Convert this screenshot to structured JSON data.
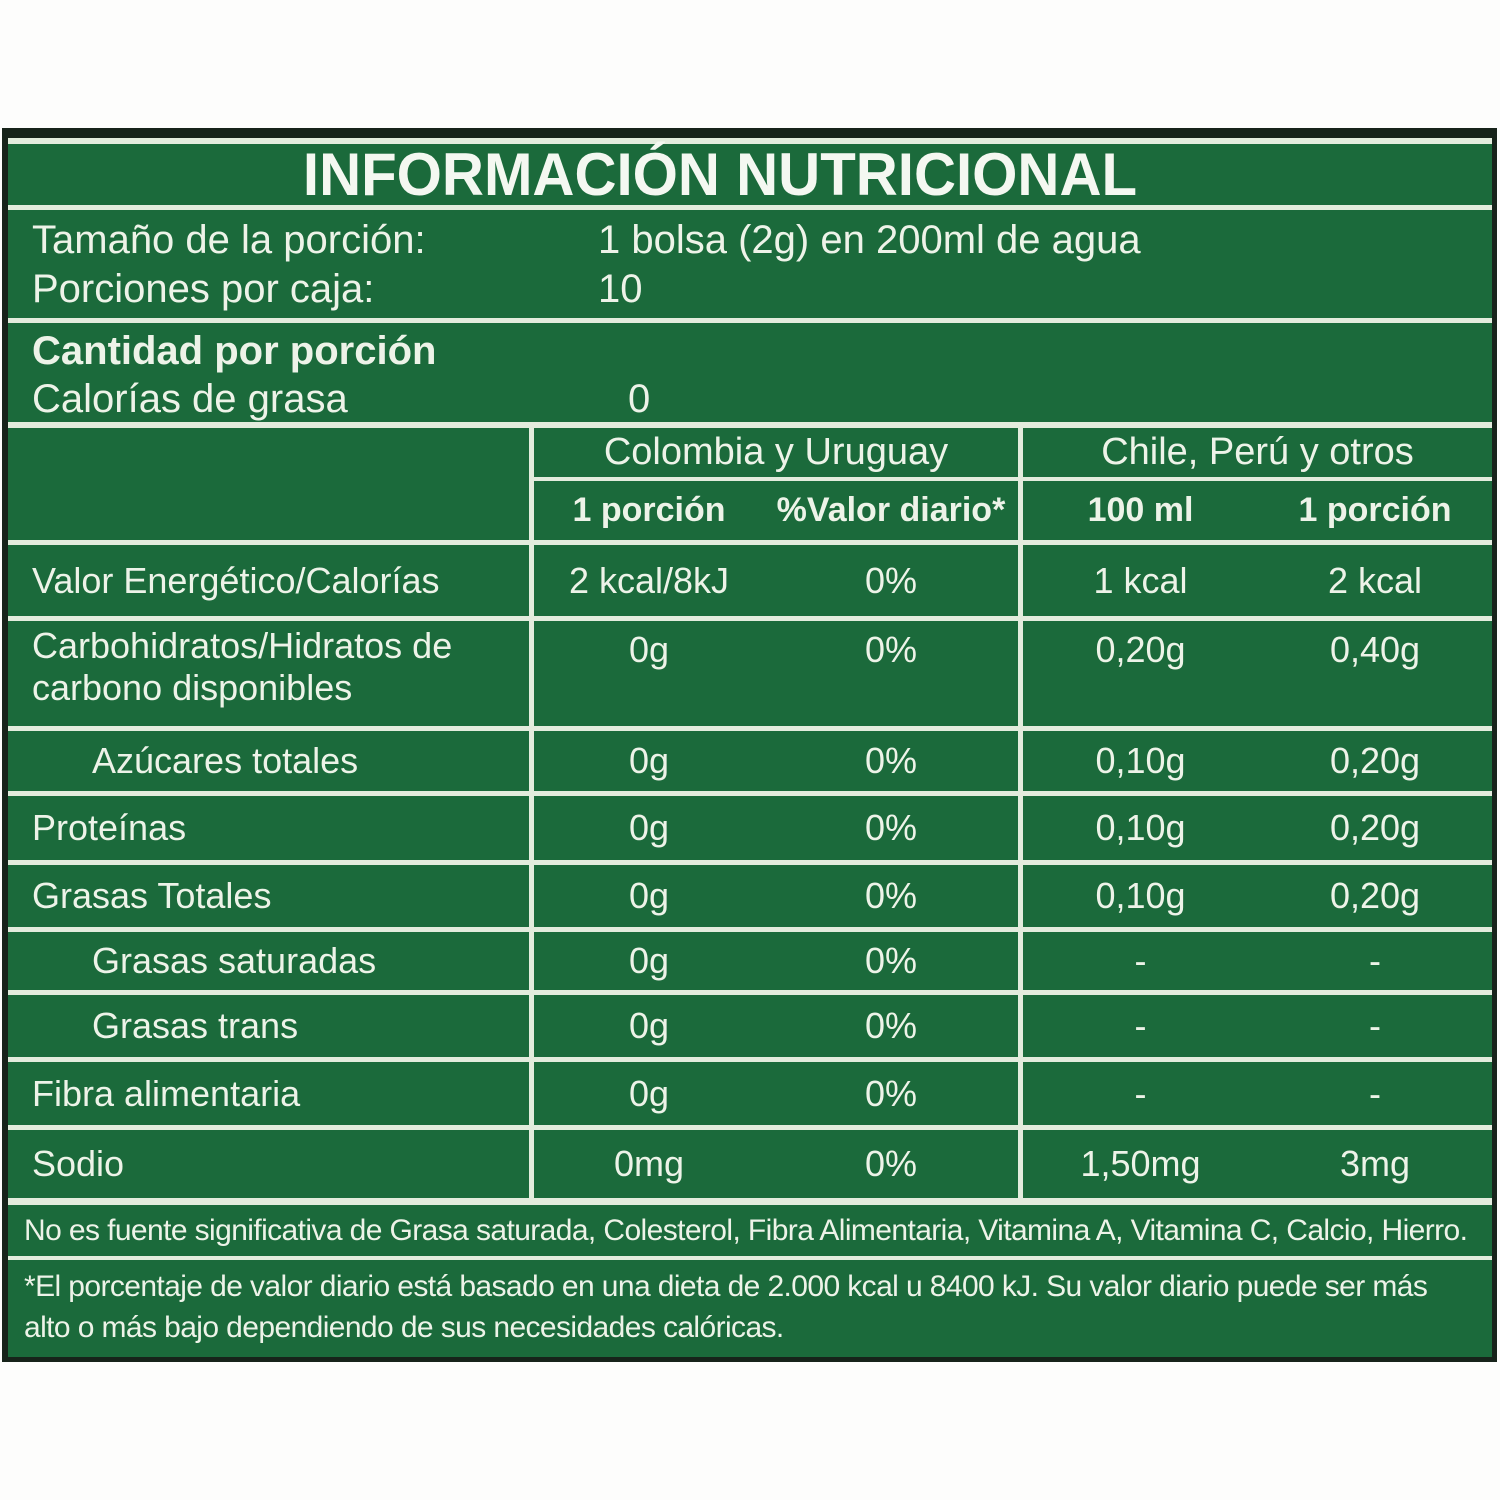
{
  "title": "INFORMACIÓN NUTRICIONAL",
  "colors": {
    "label_green": "#1b6a3b",
    "border_dark": "#17231a",
    "rule_white": "#e3ecdd",
    "text_white": "#edf3e8"
  },
  "serving": {
    "rows": [
      {
        "label": "Tamaño de la porción:",
        "value": "1 bolsa (2g) en 200ml de agua"
      },
      {
        "label": "Porciones por caja:",
        "value": "10"
      }
    ]
  },
  "amount": {
    "heading": "Cantidad por porción",
    "label": "Calorías de grasa",
    "value": "0"
  },
  "table": {
    "groups": [
      {
        "label": "Colombia y Uruguay",
        "columns": [
          "1 porción",
          "%Valor diario*"
        ]
      },
      {
        "label": "Chile, Perú y otros",
        "columns": [
          "100 ml",
          "1 porción"
        ]
      }
    ],
    "rows": [
      {
        "label": "Valor Energético/Calorías",
        "values": [
          "2 kcal/8kJ",
          "0%",
          "1 kcal",
          "2 kcal"
        ]
      },
      {
        "label": "Carbohidratos/Hidratos de carbono disponibles",
        "values": [
          "0g",
          "0%",
          "0,20g",
          "0,40g"
        ]
      },
      {
        "label": "Azúcares totales",
        "values": [
          "0g",
          "0%",
          "0,10g",
          "0,20g"
        ]
      },
      {
        "label": "Proteínas",
        "values": [
          "0g",
          "0%",
          "0,10g",
          "0,20g"
        ]
      },
      {
        "label": "Grasas Totales",
        "values": [
          "0g",
          "0%",
          "0,10g",
          "0,20g"
        ]
      },
      {
        "label": "Grasas saturadas",
        "values": [
          "0g",
          "0%",
          "-",
          "-"
        ]
      },
      {
        "label": "Grasas trans",
        "values": [
          "0g",
          "0%",
          "-",
          "-"
        ]
      },
      {
        "label": "Fibra alimentaria",
        "values": [
          "0g",
          "0%",
          "-",
          "-"
        ]
      },
      {
        "label": "Sodio",
        "values": [
          "0mg",
          "0%",
          "1,50mg",
          "3mg"
        ]
      }
    ]
  },
  "footnotes": [
    "No es fuente significativa de Grasa saturada, Colesterol, Fibra Alimentaria, Vitamina A, Vitamina C, Calcio, Hierro.",
    "*El porcentaje de valor diario está basado en una dieta de 2.000 kcal u 8400 kJ. Su valor diario puede ser más alto o más bajo dependiendo de sus necesidades calóricas."
  ]
}
